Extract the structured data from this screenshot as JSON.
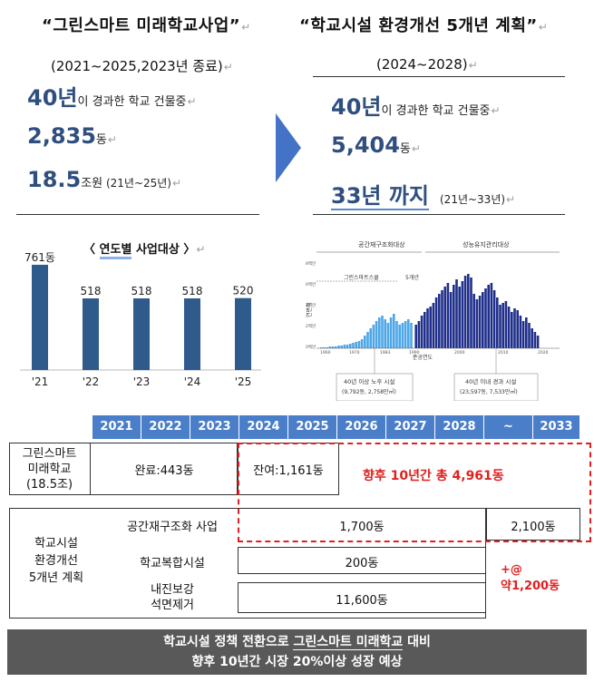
{
  "left_panel": {
    "title": "“그린스마트 미래학교사업”",
    "subtitle": "(2021~2025,2023년 종료)",
    "stats": [
      {
        "big": "40년",
        "small": "이 경과한 학교 건물중",
        "note": ""
      },
      {
        "big": "2,835",
        "small": "동",
        "note": ""
      },
      {
        "big": "18.5",
        "small": "조원",
        "note": " (21년~25년)"
      }
    ]
  },
  "right_panel": {
    "title": "“학교시설 환경개선 5개년 계획”",
    "subtitle": "(2024~2028)",
    "stats": [
      {
        "big": "40년",
        "small": "이 경과한 학교 건물중",
        "note": ""
      },
      {
        "big": "5,404",
        "small": "동",
        "note": ""
      },
      {
        "big": "33년 까지",
        "small": "",
        "note": "(21년~33년)"
      }
    ]
  },
  "bar_chart_title_a": "〈",
  "bar_chart_title_b": "연도별",
  "bar_chart_title_c": " 사업대상 〉",
  "chart_data": {
    "type": "bar",
    "categories": [
      "'21",
      "'22",
      "'23",
      "'24",
      "'25"
    ],
    "values": [
      761,
      518,
      518,
      518,
      520
    ],
    "value_labels": [
      "761동",
      "518",
      "518",
      "518",
      "520"
    ],
    "title": "〈 연도별 사업대상 〉",
    "xlabel": "",
    "ylabel": "",
    "ylim": [
      0,
      800
    ],
    "bar_color": "#2e5a8c"
  },
  "hist_chart": {
    "left_label": "공간재구조화대상",
    "right_label": "성능유지관리대상",
    "inner_label_a": "그린스마트스쿨",
    "inner_label_b": "5개년",
    "y_axis_label": "연면적",
    "x_axis_label": "준공연도",
    "x_ticks": [
      "1960",
      "1970",
      "1983",
      "1990",
      "2000",
      "2010",
      "2020"
    ],
    "y_ticks": [
      "8백만",
      "6백만",
      "4백만",
      "2백만",
      "0백만"
    ],
    "caption_left_1": "40년 이상 노후 시설",
    "caption_left_2": "(9,792동, 2,758만㎡)",
    "caption_right_1": "40년 이내 경과 시설",
    "caption_right_2": "(23,597동, 7,533만㎡)",
    "colors": {
      "light": "#4da6e8",
      "dark": "#1f2f8a"
    }
  },
  "timeline": {
    "years": [
      "2021",
      "2022",
      "2023",
      "2024",
      "2025",
      "2026",
      "2027",
      "2028",
      "~",
      "2033"
    ]
  },
  "table": {
    "gs_label": [
      "그린스마트",
      "미래학교",
      "(18.5조)"
    ],
    "gs_done": "완료:443동",
    "gs_remain": "잔여:1,161동",
    "total_note": "향후 10년간 총 4,961동",
    "plan_label": [
      "학교시설",
      "환경개선",
      "5개년 계획"
    ],
    "rows": [
      {
        "label": "공간재구조화 사업",
        "value": "1,700동",
        "extra": "2,100동"
      },
      {
        "label": "학교복합시설",
        "value": "200동"
      },
      {
        "label_1": "내진보강",
        "label_2": "석면제거",
        "value": "11,600동"
      }
    ],
    "plus_note_1": "+@",
    "plus_note_2": "약1,200동"
  },
  "footer": {
    "line1_a": "학교시설 정책 전환으로 ",
    "line1_b": "그린스마트 미래학교",
    "line1_c": " 대비",
    "line2": "향후 10년간 시장 20%이상 성장 예상"
  },
  "return_mark": "↵"
}
